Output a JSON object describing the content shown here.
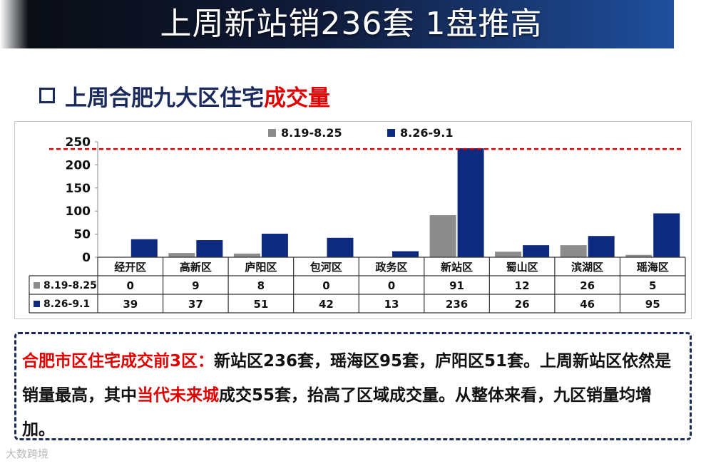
{
  "title": "上周新站销236套 1盘推高",
  "section": {
    "heading_main": "上周合肥九大区住宅",
    "heading_highlight": "成交量"
  },
  "chart_data": {
    "type": "bar",
    "categories": [
      "经开区",
      "高新区",
      "庐阳区",
      "包河区",
      "政务区",
      "新站区",
      "蜀山区",
      "滨湖区",
      "瑶海区"
    ],
    "series": [
      {
        "name": "8.19-8.25",
        "values": [
          0,
          9,
          8,
          0,
          0,
          91,
          12,
          26,
          5
        ],
        "color": "#8c8c8c"
      },
      {
        "name": "8.26-9.1",
        "values": [
          39,
          37,
          51,
          42,
          13,
          236,
          26,
          46,
          95
        ],
        "color": "#0d2a7e"
      }
    ],
    "ylim": [
      0,
      250
    ],
    "yticks": [
      0,
      50,
      100,
      150,
      200,
      250
    ],
    "reference_line": {
      "value": 236,
      "color": "#d00000",
      "style": "dashed"
    },
    "legend_position": "top-center",
    "data_table": true
  },
  "note": {
    "lead": "合肥市区住宅成交前3区：",
    "part1": "新站区236套，瑶海区95套，庐阳区51套。上周新站区依然是销量最高，其中",
    "highlight": "当代未来城",
    "part2": "成交55套，抬高了区域成交量。从整体来看，九区销量均增加。"
  },
  "watermark": "大数跨境"
}
